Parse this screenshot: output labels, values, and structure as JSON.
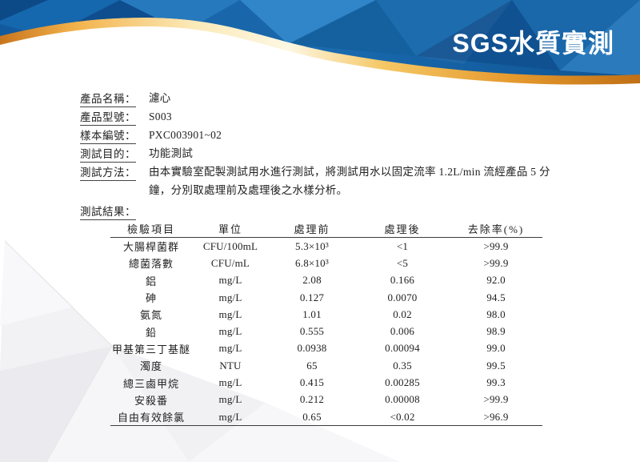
{
  "header": {
    "title": "SGS水質實測"
  },
  "info": {
    "rows": [
      {
        "label": "產品名稱：",
        "value": "濾心"
      },
      {
        "label": "產品型號：",
        "value": "S003"
      },
      {
        "label": "樣本編號：",
        "value": "PXC003901~02"
      },
      {
        "label": "測試目的：",
        "value": "功能測試"
      },
      {
        "label": "測試方法：",
        "value": "由本實驗室配製測試用水進行測試，將測試用水以固定流率 1.2L/min 流經產品 5 分鐘，分別取處理前及處理後之水樣分析。"
      }
    ],
    "results_label": "測試結果："
  },
  "table": {
    "headers": [
      "檢驗項目",
      "單位",
      "處理前",
      "處理後",
      "去除率(%)"
    ],
    "rows": [
      [
        "大腸桿菌群",
        "CFU/100mL",
        "5.3×10³",
        "<1",
        ">99.9"
      ],
      [
        "總菌落數",
        "CFU/mL",
        "6.8×10³",
        "<5",
        ">99.9"
      ],
      [
        "鋁",
        "mg/L",
        "2.08",
        "0.166",
        "92.0"
      ],
      [
        "砷",
        "mg/L",
        "0.127",
        "0.0070",
        "94.5"
      ],
      [
        "氨氮",
        "mg/L",
        "1.01",
        "0.02",
        "98.0"
      ],
      [
        "鉛",
        "mg/L",
        "0.555",
        "0.006",
        "98.9"
      ],
      [
        "甲基第三丁基醚",
        "mg/L",
        "0.0938",
        "0.00094",
        "99.0"
      ],
      [
        "濁度",
        "NTU",
        "65",
        "0.35",
        "99.5"
      ],
      [
        "總三鹵甲烷",
        "mg/L",
        "0.415",
        "0.00285",
        "99.3"
      ],
      [
        "安殺番",
        "mg/L",
        "0.212",
        "0.00008",
        ">99.9"
      ],
      [
        "自由有效餘氯",
        "mg/L",
        "0.65",
        "<0.02",
        ">96.9"
      ]
    ]
  },
  "colors": {
    "banner_blue": "#1a6bb0",
    "banner_gold": "#eda93f",
    "title_color": "#ffffff",
    "text_color": "#222222"
  }
}
